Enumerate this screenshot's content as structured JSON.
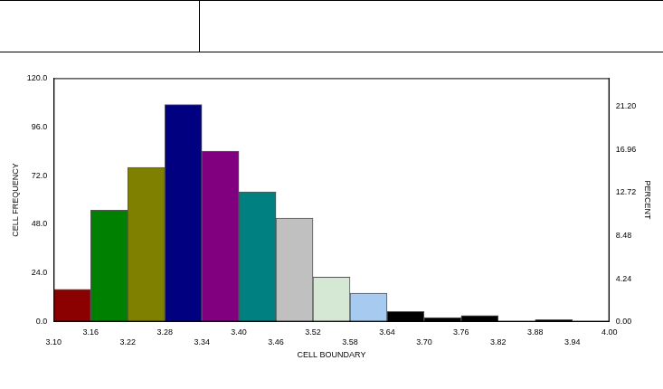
{
  "chart_data": {
    "type": "histogram",
    "xlabel": "CELL BOUNDARY",
    "ylabel": "CELL FREQUENCY",
    "y2label": "PERCENT",
    "bins": [
      3.1,
      3.16,
      3.22,
      3.28,
      3.34,
      3.4,
      3.46,
      3.52,
      3.58,
      3.64,
      3.7,
      3.76,
      3.82,
      3.88,
      3.94,
      4.0
    ],
    "values": [
      16,
      55,
      76,
      107,
      84,
      64,
      51,
      22,
      14,
      5,
      2,
      3,
      0,
      1,
      0
    ],
    "colors": [
      "#8b0000",
      "#008000",
      "#808000",
      "#000080",
      "#800080",
      "#008080",
      "#c0c0c0",
      "#d4e8d4",
      "#a6caf0",
      "#000000",
      "#000000",
      "#000000",
      "#000000",
      "#000000",
      "#000000"
    ],
    "xlim": [
      3.1,
      4.0
    ],
    "xticks": [
      {
        "value": 3.1,
        "label": "3.10"
      },
      {
        "value": 3.16,
        "label": "3.16"
      },
      {
        "value": 3.22,
        "label": "3.22"
      },
      {
        "value": 3.28,
        "label": "3.28"
      },
      {
        "value": 3.34,
        "label": "3.34"
      },
      {
        "value": 3.4,
        "label": "3.40"
      },
      {
        "value": 3.46,
        "label": "3.46"
      },
      {
        "value": 3.52,
        "label": "3.52"
      },
      {
        "value": 3.58,
        "label": "3.58"
      },
      {
        "value": 3.64,
        "label": "3.64"
      },
      {
        "value": 3.7,
        "label": "3.70"
      },
      {
        "value": 3.76,
        "label": "3.76"
      },
      {
        "value": 3.82,
        "label": "3.82"
      },
      {
        "value": 3.88,
        "label": "3.88"
      },
      {
        "value": 3.94,
        "label": "3.94"
      },
      {
        "value": 4.0,
        "label": "4.00"
      }
    ],
    "ylim": [
      0,
      120
    ],
    "yticks": [
      {
        "value": 0,
        "label": "0.0"
      },
      {
        "value": 24,
        "label": "24.0"
      },
      {
        "value": 48,
        "label": "48.0"
      },
      {
        "value": 72,
        "label": "72.0"
      },
      {
        "value": 96,
        "label": "96.0"
      },
      {
        "value": 120,
        "label": "120.0"
      }
    ],
    "y2lim": [
      0,
      24
    ],
    "y2ticks": [
      {
        "value": 0,
        "label": "0.00"
      },
      {
        "value": 4.24,
        "label": "4.24"
      },
      {
        "value": 8.48,
        "label": "8.48"
      },
      {
        "value": 12.72,
        "label": "12.72"
      },
      {
        "value": 16.96,
        "label": "16.96"
      },
      {
        "value": 21.2,
        "label": "21.20"
      }
    ],
    "grid": false
  }
}
